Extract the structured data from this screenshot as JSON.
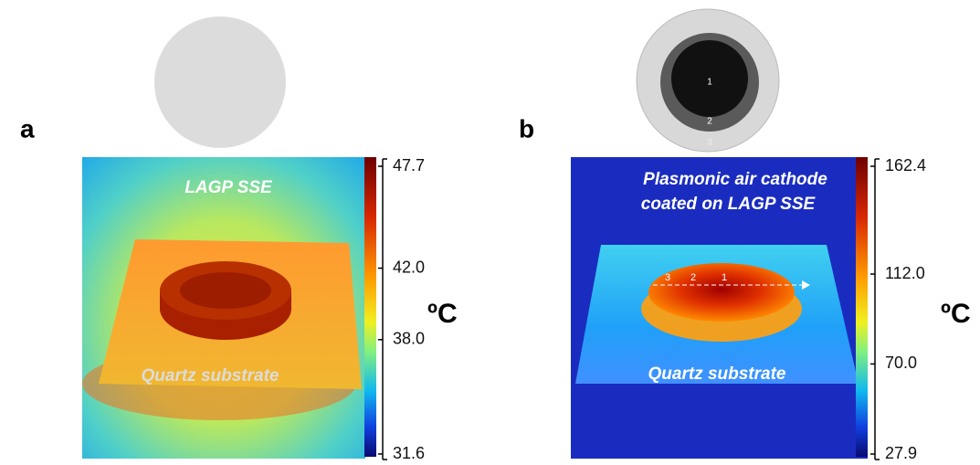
{
  "panels": [
    {
      "label": "a",
      "image_texts": [
        "LAGP SSE",
        "Quartz substrate"
      ],
      "colorbar": {
        "range": [
          31.6,
          47.7
        ],
        "ticks": [
          47.7,
          {
            "value": 42,
            "label": "42.0"
          },
          {
            "value": 38,
            "label": "38.0"
          },
          31.6
        ],
        "unit": "ºC"
      }
    },
    {
      "label": "b",
      "photo_labels": [
        "1",
        "2",
        "3"
      ],
      "image_texts": [
        "Plasmonic air cathode",
        "coated on LAGP SSE",
        "Quartz substrate"
      ],
      "profile_labels": [
        "3",
        "2",
        "1"
      ],
      "colorbar": {
        "range": [
          27.9,
          162.4
        ],
        "ticks": [
          162.4,
          {
            "value": 112,
            "label": "112.0"
          },
          {
            "value": 70,
            "label": "70.0"
          },
          27.9
        ],
        "unit": "ºC"
      }
    }
  ]
}
